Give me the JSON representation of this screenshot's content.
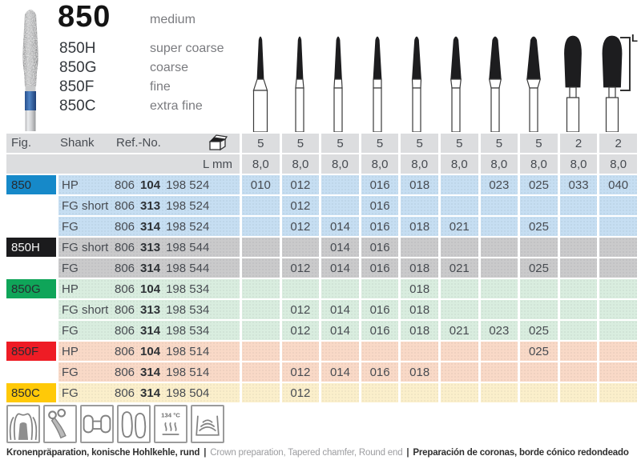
{
  "product": {
    "code": "850",
    "grit": "medium",
    "variants": [
      {
        "code": "850H",
        "grit": "super coarse"
      },
      {
        "code": "850G",
        "grit": "coarse"
      },
      {
        "code": "850F",
        "grit": "fine"
      },
      {
        "code": "850C",
        "grit": "extra fine"
      }
    ],
    "length_label": "L"
  },
  "table": {
    "headers": {
      "fig": "Fig.",
      "shank": "Shank",
      "ref": "Ref.-No.",
      "lmm": "L mm"
    },
    "pack_icon": "package-icon",
    "pack_quantities": [
      "5",
      "5",
      "5",
      "5",
      "5",
      "5",
      "5",
      "5",
      "2",
      "2"
    ],
    "lengths_mm": [
      "8,0",
      "8,0",
      "8,0",
      "8,0",
      "8,0",
      "8,0",
      "8,0",
      "8,0",
      "8,0",
      "8,0"
    ],
    "rows": [
      {
        "fig": "850",
        "group": "850",
        "shank": "HP",
        "ref": [
          "806",
          "104",
          "198 524"
        ],
        "sizes": [
          "010",
          "012",
          "",
          "016",
          "018",
          "",
          "023",
          "025",
          "033",
          "040"
        ]
      },
      {
        "fig": "",
        "group": "850",
        "shank": "FG short",
        "ref": [
          "806",
          "313",
          "198 524"
        ],
        "sizes": [
          "",
          "012",
          "",
          "016",
          "",
          "",
          "",
          "",
          "",
          ""
        ]
      },
      {
        "fig": "",
        "group": "850",
        "shank": "FG",
        "ref": [
          "806",
          "314",
          "198 524"
        ],
        "sizes": [
          "",
          "012",
          "014",
          "016",
          "018",
          "021",
          "",
          "025",
          "",
          ""
        ]
      },
      {
        "fig": "850H",
        "group": "850H",
        "shank": "FG short",
        "ref": [
          "806",
          "313",
          "198 544"
        ],
        "sizes": [
          "",
          "",
          "014",
          "016",
          "",
          "",
          "",
          "",
          "",
          ""
        ]
      },
      {
        "fig": "",
        "group": "850H",
        "shank": "FG",
        "ref": [
          "806",
          "314",
          "198 544"
        ],
        "sizes": [
          "",
          "012",
          "014",
          "016",
          "018",
          "021",
          "",
          "025",
          "",
          ""
        ]
      },
      {
        "fig": "850G",
        "group": "850G",
        "shank": "HP",
        "ref": [
          "806",
          "104",
          "198 534"
        ],
        "sizes": [
          "",
          "",
          "",
          "",
          "018",
          "",
          "",
          "",
          "",
          ""
        ]
      },
      {
        "fig": "",
        "group": "850G",
        "shank": "FG short",
        "ref": [
          "806",
          "313",
          "198 534"
        ],
        "sizes": [
          "",
          "012",
          "014",
          "016",
          "018",
          "",
          "",
          "",
          "",
          ""
        ]
      },
      {
        "fig": "",
        "group": "850G",
        "shank": "FG",
        "ref": [
          "806",
          "314",
          "198 534"
        ],
        "sizes": [
          "",
          "012",
          "014",
          "016",
          "018",
          "021",
          "023",
          "025",
          "",
          ""
        ]
      },
      {
        "fig": "850F",
        "group": "850F",
        "shank": "HP",
        "ref": [
          "806",
          "104",
          "198 514"
        ],
        "sizes": [
          "",
          "",
          "",
          "",
          "",
          "",
          "",
          "025",
          "",
          ""
        ]
      },
      {
        "fig": "",
        "group": "850F",
        "shank": "FG",
        "ref": [
          "806",
          "314",
          "198 514"
        ],
        "sizes": [
          "",
          "012",
          "014",
          "016",
          "018",
          "",
          "",
          "",
          "",
          ""
        ]
      },
      {
        "fig": "850C",
        "group": "850C",
        "shank": "FG",
        "ref": [
          "806",
          "314",
          "198 504"
        ],
        "sizes": [
          "",
          "012",
          "",
          "",
          "",
          "",
          "",
          "",
          "",
          ""
        ]
      }
    ]
  },
  "icons_row": {
    "icons": [
      "crown-preparation",
      "clasp",
      "bridge",
      "crowns",
      "sterilizable-134",
      "ultrasonic-bath"
    ],
    "sterilize_temp": "134 °C"
  },
  "footer": {
    "de": "Kronenpräparation, konische Hohlkehle, rund",
    "en": "Crown preparation, Tapered chamfer, Round end",
    "es": "Preparación de coronas, borde cónico redondeado",
    "separator": "|"
  },
  "colors": {
    "fig_blue": "#1689c9",
    "fig_black": "#1b1b1d",
    "fig_green": "#0fa559",
    "fig_red": "#ee1c25",
    "fig_yellow": "#ffc908",
    "row_blue": "#c6def2",
    "row_gray": "#cacacb",
    "row_green": "#d9eddf",
    "row_salmon": "#f9d9c7",
    "row_cream": "#fbefcb",
    "header_gray": "#dcdddf"
  }
}
